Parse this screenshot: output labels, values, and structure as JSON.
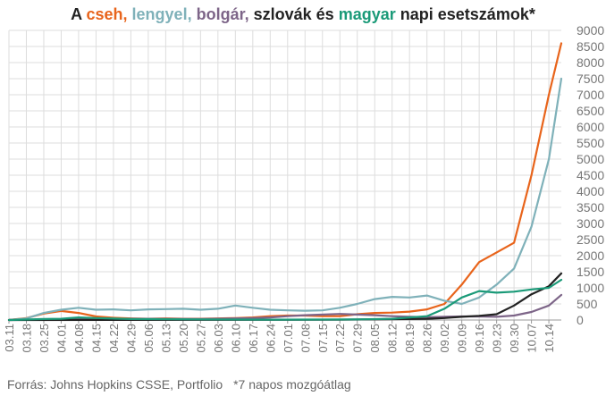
{
  "title": {
    "prefix": "A ",
    "cz": "cseh,",
    "pl": "lengyel,",
    "bg": "bolgár,",
    "sk_text": "szlovák és",
    "hu": "magyar",
    "suffix": "napi esetszámok*"
  },
  "source": {
    "text": "Forrás: Johns Hopkins CSSE, Portfolio",
    "note": "*7 napos mozgóátlag"
  },
  "chart_data": {
    "type": "line",
    "ylim": [
      0,
      9000
    ],
    "yticks": [
      0,
      500,
      1000,
      1500,
      2000,
      2500,
      3000,
      3500,
      4000,
      4500,
      5000,
      5500,
      6000,
      6500,
      7000,
      7500,
      8000,
      8500,
      9000
    ],
    "x_start": "03.11",
    "x_end": "10.19",
    "xticks": [
      "03.11",
      "03.18",
      "03.25",
      "04.01",
      "04.08",
      "04.15",
      "04.22",
      "04.29",
      "05.06",
      "05.13",
      "05.20",
      "05.27",
      "06.03",
      "06.10",
      "06.17",
      "06.24",
      "07.01",
      "07.08",
      "07.15",
      "07.22",
      "07.29",
      "08.05",
      "08.12",
      "08.19",
      "08.26",
      "09.02",
      "09.09",
      "09.16",
      "09.23",
      "09.30",
      "10.07",
      "10.14"
    ],
    "grid": true,
    "y_axis_position": "right",
    "series": [
      {
        "name": "cseh",
        "color": "#e8641b",
        "points": [
          [
            "03.11",
            0
          ],
          [
            "03.18",
            60
          ],
          [
            "03.25",
            200
          ],
          [
            "04.01",
            280
          ],
          [
            "04.08",
            220
          ],
          [
            "04.15",
            110
          ],
          [
            "04.22",
            70
          ],
          [
            "04.29",
            50
          ],
          [
            "05.06",
            40
          ],
          [
            "05.13",
            50
          ],
          [
            "05.20",
            40
          ],
          [
            "05.27",
            40
          ],
          [
            "06.03",
            50
          ],
          [
            "06.10",
            60
          ],
          [
            "06.17",
            80
          ],
          [
            "06.24",
            120
          ],
          [
            "07.01",
            140
          ],
          [
            "07.08",
            140
          ],
          [
            "07.15",
            120
          ],
          [
            "07.22",
            120
          ],
          [
            "07.29",
            180
          ],
          [
            "08.05",
            220
          ],
          [
            "08.12",
            230
          ],
          [
            "08.19",
            260
          ],
          [
            "08.26",
            330
          ],
          [
            "09.02",
            500
          ],
          [
            "09.09",
            1100
          ],
          [
            "09.16",
            1800
          ],
          [
            "09.23",
            2100
          ],
          [
            "09.30",
            2400
          ],
          [
            "10.07",
            4500
          ],
          [
            "10.14",
            7000
          ],
          [
            "10.19",
            8600
          ]
        ]
      },
      {
        "name": "lengyel",
        "color": "#7fb1b9",
        "points": [
          [
            "03.11",
            0
          ],
          [
            "03.18",
            50
          ],
          [
            "03.25",
            220
          ],
          [
            "04.01",
            320
          ],
          [
            "04.08",
            380
          ],
          [
            "04.15",
            320
          ],
          [
            "04.22",
            330
          ],
          [
            "04.29",
            300
          ],
          [
            "05.06",
            330
          ],
          [
            "05.13",
            340
          ],
          [
            "05.20",
            350
          ],
          [
            "05.27",
            320
          ],
          [
            "06.03",
            350
          ],
          [
            "06.10",
            450
          ],
          [
            "06.17",
            380
          ],
          [
            "06.24",
            320
          ],
          [
            "07.01",
            300
          ],
          [
            "07.08",
            290
          ],
          [
            "07.15",
            300
          ],
          [
            "07.22",
            380
          ],
          [
            "07.29",
            500
          ],
          [
            "08.05",
            650
          ],
          [
            "08.12",
            720
          ],
          [
            "08.19",
            700
          ],
          [
            "08.26",
            760
          ],
          [
            "09.02",
            600
          ],
          [
            "09.09",
            500
          ],
          [
            "09.16",
            700
          ],
          [
            "09.23",
            1100
          ],
          [
            "09.30",
            1600
          ],
          [
            "10.07",
            2900
          ],
          [
            "10.14",
            5000
          ],
          [
            "10.19",
            7500
          ]
        ]
      },
      {
        "name": "bolgár",
        "color": "#7d6588",
        "points": [
          [
            "03.11",
            0
          ],
          [
            "04.01",
            20
          ],
          [
            "04.29",
            40
          ],
          [
            "05.27",
            30
          ],
          [
            "06.17",
            60
          ],
          [
            "06.24",
            80
          ],
          [
            "07.01",
            120
          ],
          [
            "07.08",
            150
          ],
          [
            "07.22",
            190
          ],
          [
            "07.29",
            170
          ],
          [
            "08.05",
            150
          ],
          [
            "08.12",
            120
          ],
          [
            "08.19",
            100
          ],
          [
            "08.26",
            90
          ],
          [
            "09.02",
            100
          ],
          [
            "09.09",
            110
          ],
          [
            "09.16",
            110
          ],
          [
            "09.23",
            100
          ],
          [
            "09.30",
            140
          ],
          [
            "10.07",
            250
          ],
          [
            "10.14",
            450
          ],
          [
            "10.19",
            780
          ]
        ]
      },
      {
        "name": "szlovák",
        "color": "#222222",
        "points": [
          [
            "03.11",
            0
          ],
          [
            "05.27",
            5
          ],
          [
            "07.22",
            10
          ],
          [
            "08.26",
            40
          ],
          [
            "09.02",
            60
          ],
          [
            "09.09",
            100
          ],
          [
            "09.16",
            130
          ],
          [
            "09.23",
            180
          ],
          [
            "09.30",
            450
          ],
          [
            "10.07",
            800
          ],
          [
            "10.14",
            1050
          ],
          [
            "10.19",
            1450
          ]
        ]
      },
      {
        "name": "magyar",
        "color": "#1a9a78",
        "points": [
          [
            "03.11",
            0
          ],
          [
            "03.25",
            30
          ],
          [
            "04.01",
            40
          ],
          [
            "04.08",
            80
          ],
          [
            "04.15",
            60
          ],
          [
            "04.29",
            30
          ],
          [
            "05.27",
            20
          ],
          [
            "06.24",
            10
          ],
          [
            "07.29",
            20
          ],
          [
            "08.12",
            40
          ],
          [
            "08.26",
            120
          ],
          [
            "09.02",
            350
          ],
          [
            "09.09",
            700
          ],
          [
            "09.16",
            900
          ],
          [
            "09.23",
            850
          ],
          [
            "09.30",
            880
          ],
          [
            "10.07",
            950
          ],
          [
            "10.14",
            1000
          ],
          [
            "10.19",
            1250
          ]
        ]
      }
    ]
  },
  "colors": {
    "grid": "#dddddd",
    "axis": "#999999",
    "tick_label": "#777777"
  }
}
